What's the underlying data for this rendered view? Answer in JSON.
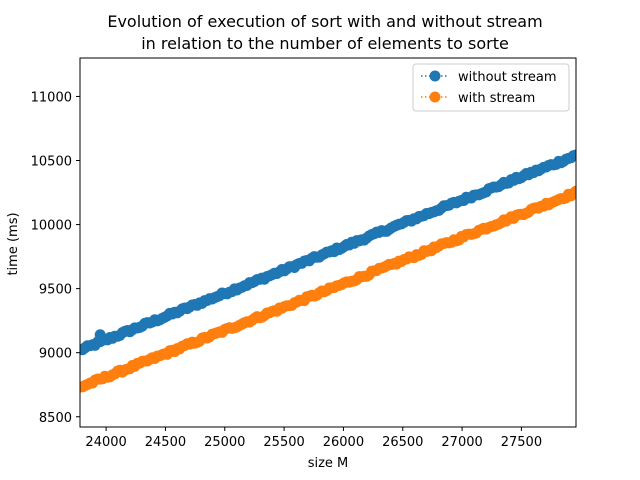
{
  "chart_data": {
    "type": "line",
    "title_lines": [
      "Evolution of execution of sort with and without stream",
      "in relation to the number of elements to sorte"
    ],
    "xlabel": "size M",
    "ylabel": "time (ms)",
    "xlim": [
      23780,
      27960
    ],
    "ylim": [
      8420,
      11300
    ],
    "x_ticks": [
      24000,
      24500,
      25000,
      25500,
      26000,
      26500,
      27000,
      27500
    ],
    "y_ticks": [
      8500,
      9000,
      9500,
      10000,
      10500,
      11000
    ],
    "legend_position": "top-right",
    "marker": "circle",
    "line_style": "dotted",
    "series": [
      {
        "name": "without stream",
        "color": "#1f77b4",
        "x_start": 23780,
        "x_end": 27960,
        "y_start": 9020,
        "y_end": 10540,
        "n_points": 200,
        "noise": 12,
        "outliers": [
          [
            23950,
            9140
          ]
        ]
      },
      {
        "name": "with stream",
        "color": "#ff7f0e",
        "x_start": 23780,
        "x_end": 27960,
        "y_start": 8730,
        "y_end": 10250,
        "n_points": 200,
        "noise": 12,
        "outliers": []
      }
    ]
  }
}
